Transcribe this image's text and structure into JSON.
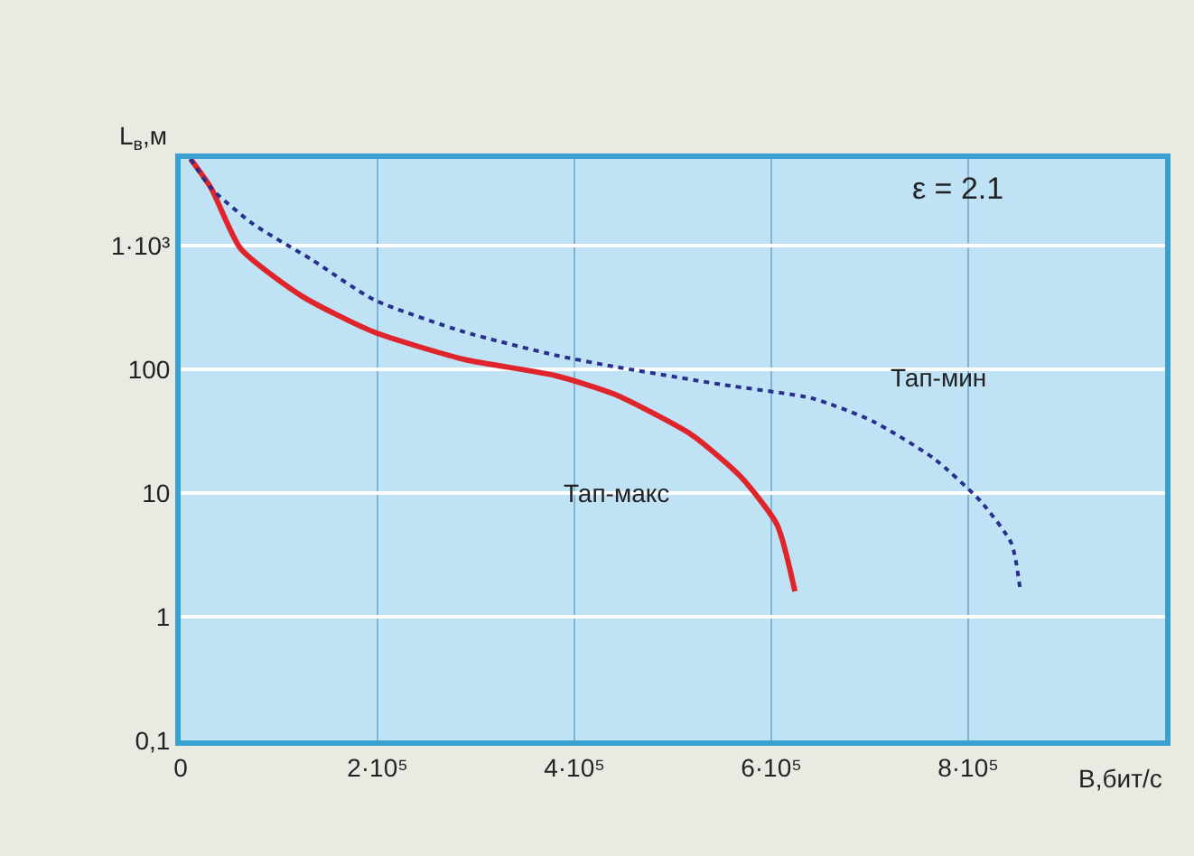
{
  "chart_data": {
    "type": "line",
    "xlabel": "B,бит/с",
    "ylabel": "L$_{в}$,м",
    "log": "y",
    "grid": true,
    "legend": false,
    "marker": "none",
    "xlim": [
      0,
      1000000
    ],
    "xticks": [
      0,
      {
        "value": 200000,
        "label": "2·10⁵"
      },
      {
        "value": 400000,
        "label": "4·10⁵"
      },
      {
        "value": 600000,
        "label": "6·10⁵"
      },
      {
        "value": 800000,
        "label": "8·10⁵"
      }
    ],
    "ylim": [
      0.1,
      5000
    ],
    "yticks": [
      {
        "value": 0.1,
        "label": "0,1"
      },
      1,
      10,
      100,
      {
        "value": 1000,
        "label": "1·10³"
      }
    ],
    "annotations": [
      "ε = 2.1"
    ],
    "series": [
      {
        "name": "Тап-макс",
        "color": "#e0242c",
        "line_style": "solid",
        "x": [
          10000,
          31000,
          61000,
          123000,
          196000,
          288000,
          380000,
          440000,
          519000,
          569000,
          606000,
          624000
        ],
        "values": [
          5000,
          2900,
          940,
          390,
          200,
          120,
          89,
          63,
          29.5,
          13.5,
          5.5,
          1.6
        ]
      },
      {
        "name": "Тап-мин",
        "color": "#2a2f8c",
        "line_style": "dotted",
        "x": [
          10000,
          31000,
          73000,
          134000,
          196000,
          288000,
          380000,
          440000,
          550000,
          642000,
          703000,
          765000,
          813000,
          844000,
          853000
        ],
        "values": [
          5000,
          2900,
          1500,
          760,
          365,
          200,
          130,
          105,
          75,
          58,
          38,
          19,
          8.5,
          3.9,
          1.6
        ]
      }
    ]
  }
}
